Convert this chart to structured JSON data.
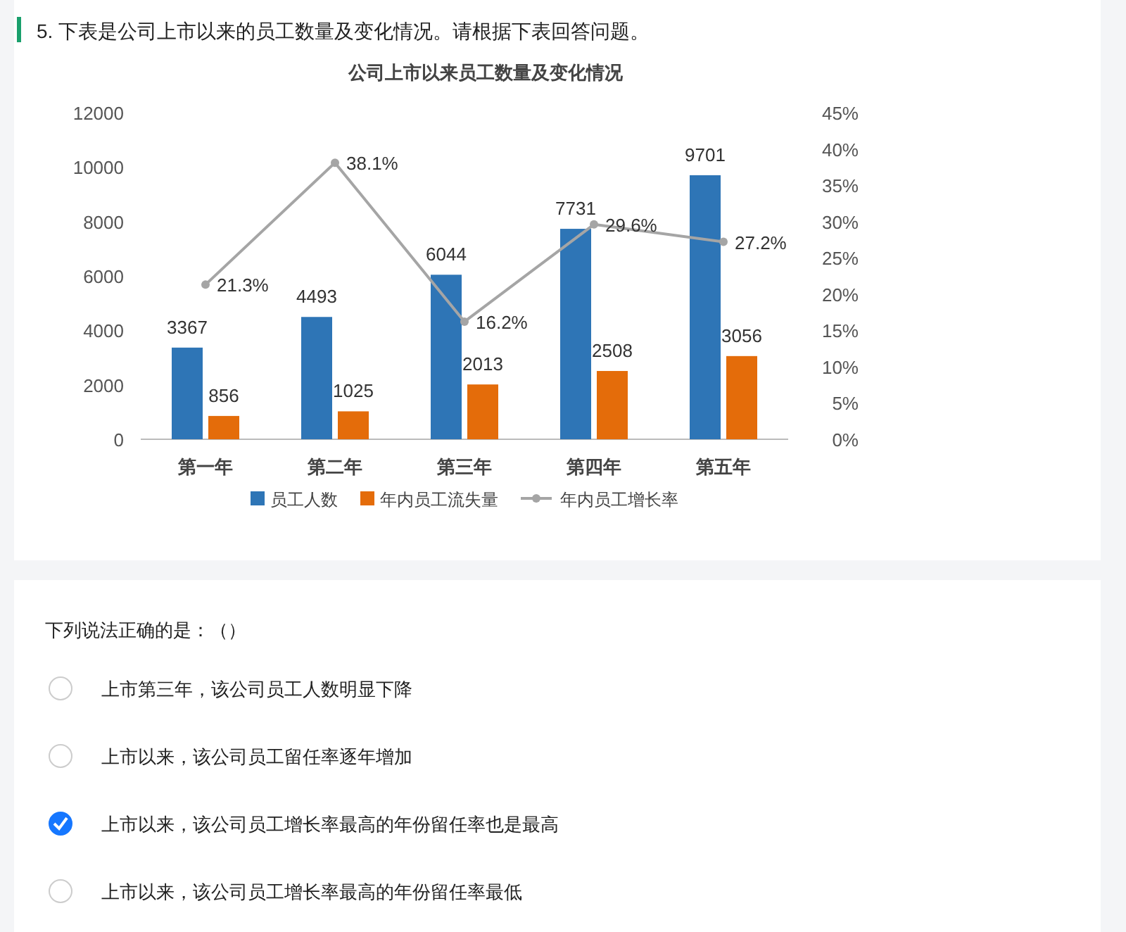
{
  "chart_data": {
    "type": "bar",
    "title": "公司上市以来员工数量及变化情况",
    "subtitle": "5. 下表是公司上市以来的员工数量及变化情况。请根据下表回答问题。",
    "categories": [
      "第一年",
      "第二年",
      "第三年",
      "第四年",
      "第五年"
    ],
    "series": [
      {
        "name": "员工人数",
        "color": "#2e75b6",
        "values": [
          3367,
          4493,
          6044,
          7731,
          9701
        ]
      },
      {
        "name": "年内员工流失量",
        "color": "#e46c0a",
        "values": [
          856,
          1025,
          2013,
          2508,
          3056
        ]
      },
      {
        "name": "年内员工增长率",
        "type": "line",
        "axis": "y2",
        "color": "#a5a5a5",
        "marker": "circle",
        "values": [
          21.3,
          38.1,
          16.2,
          29.6,
          27.2
        ],
        "value_labels": [
          "21.3%",
          "38.1%",
          "16.2%",
          "29.6%",
          "27.2%"
        ]
      }
    ],
    "ylim": [
      0,
      12000
    ],
    "yticks": [
      0,
      2000,
      4000,
      6000,
      8000,
      10000,
      12000
    ],
    "y2lim": [
      0,
      45
    ],
    "y2ticks": [
      {
        "value": 0,
        "label": "0%"
      },
      {
        "value": 5,
        "label": "5%"
      },
      {
        "value": 10,
        "label": "10%"
      },
      {
        "value": 15,
        "label": "15%"
      },
      {
        "value": 20,
        "label": "20%"
      },
      {
        "value": 25,
        "label": "25%"
      },
      {
        "value": 30,
        "label": "30%"
      },
      {
        "value": 35,
        "label": "35%"
      },
      {
        "value": 40,
        "label": "40%"
      },
      {
        "value": 45,
        "label": "45%"
      }
    ],
    "data_labels": true,
    "grid": false,
    "legend": "bottom",
    "annotations": [
      "下列说法正确的是：（）",
      "上市第三年，该公司员工人数明显下降",
      "上市以来，该公司员工留任率逐年增加",
      "上市以来，该公司员工增长率最高的年份留任率也是最高",
      "上市以来，该公司员工增长率最高的年份留任率最低"
    ]
  }
}
